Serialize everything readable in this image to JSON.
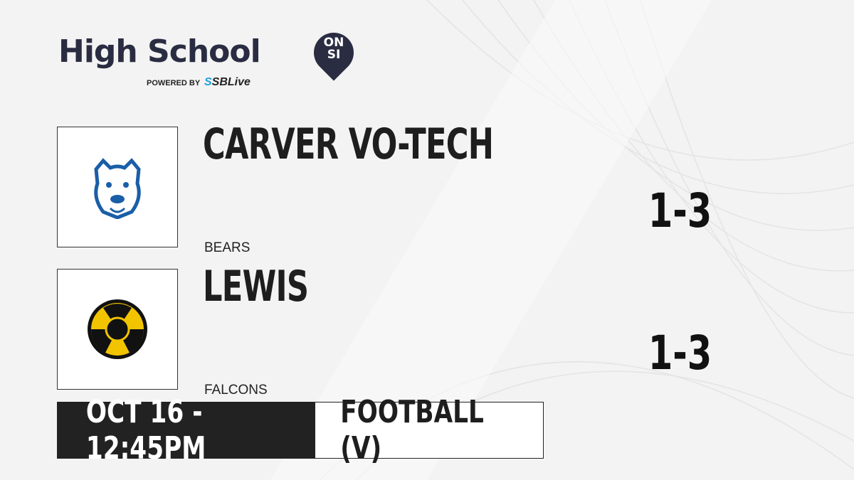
{
  "brand": {
    "title": "High School",
    "badge_top": "ON",
    "badge_bottom": "SI",
    "powered_by": "POWERED BY",
    "sblive_prefix": "S",
    "sblive": "SBLive"
  },
  "teams": [
    {
      "name": "CARVER VO-TECH",
      "mascot": "BEARS",
      "record": "1-3",
      "logo": "bear-logo",
      "color": "#1a5ea8"
    },
    {
      "name": "LEWIS",
      "mascot": "FALCONS",
      "record": "1-3",
      "logo": "falcon-logo",
      "color": "#f2c400"
    }
  ],
  "game": {
    "datetime": "OCT 16 - 12:45PM",
    "sport": "FOOTBALL (V)"
  }
}
